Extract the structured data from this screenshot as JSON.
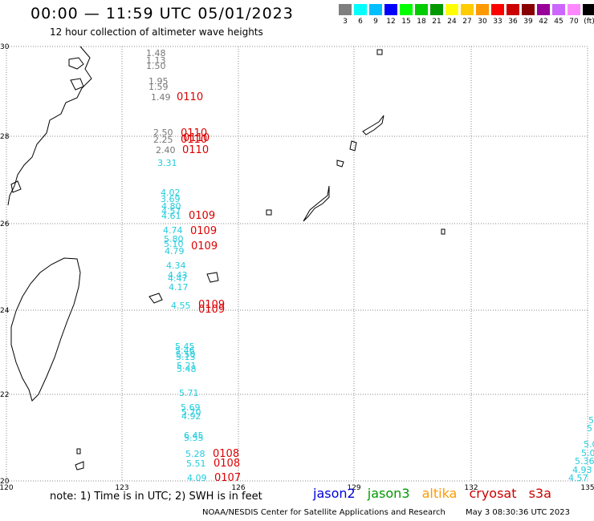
{
  "title": "00:00 — 11:59 UTC 05/01/2023",
  "subtitle": "12 hour collection of altimeter wave heights",
  "scale": {
    "labels": [
      "3",
      "6",
      "9",
      "12",
      "15",
      "18",
      "21",
      "24",
      "27",
      "30",
      "33",
      "36",
      "39",
      "42",
      "45",
      "70",
      "(ft)"
    ],
    "colors": [
      "#7f7f7f",
      "#00ffff",
      "#00bfff",
      "#0000ff",
      "#00ff00",
      "#00cc00",
      "#009900",
      "#ffff00",
      "#ffcc00",
      "#ff9900",
      "#ff0000",
      "#cc0000",
      "#880000",
      "#990099",
      "#cc66ff",
      "#ff88ff",
      "#000000"
    ]
  },
  "axes": {
    "lat_labels": [
      "30",
      "28",
      "26",
      "24",
      "22",
      "20"
    ],
    "lon_labels": [
      "120",
      "123",
      "126",
      "129",
      "132",
      "135"
    ]
  },
  "colors": {
    "grey": "#777777",
    "cyan": "#22ccdd",
    "red": "#dd0000",
    "grid": "#888888"
  },
  "observations": {
    "grey": [
      "1.48",
      "1.13",
      "1.50",
      "1.95",
      "1.59",
      "1.49",
      "2.50",
      "2.25",
      "2.40"
    ],
    "cyan": [
      "3.31",
      "4.02",
      "3.69",
      "4.80",
      "4.57",
      "4.61",
      "4.74",
      "5.80",
      "5.10",
      "4.79",
      "4.34",
      "4.43",
      "4.47",
      "4.17",
      "4.55",
      "5.45",
      "5.46",
      "5.50",
      "5.13",
      "5.21",
      "5.48",
      "5.71",
      "5.69",
      "5.70",
      "4.92",
      "6.45",
      "5.55",
      "5.28",
      "5.51",
      "4.09"
    ],
    "red": [
      "0110",
      "0110",
      "0110",
      "0110",
      "0110",
      "0109",
      "0109",
      "0109",
      "0109",
      "0109",
      "0108",
      "0108",
      "0107"
    ],
    "edge": [
      "5",
      "5",
      "5.0",
      "5.0",
      "5.36",
      "4.93",
      "4.57"
    ]
  },
  "note": "note: 1) Time is in UTC; 2) SWH is in feet",
  "missions": [
    {
      "name": "jason2",
      "color": "#0000dd"
    },
    {
      "name": "jason3",
      "color": "#009900"
    },
    {
      "name": "altika",
      "color": "#ff9900"
    },
    {
      "name": "cryosat",
      "color": "#cc0000"
    },
    {
      "name": "s3a",
      "color": "#cc0000"
    }
  ],
  "footer": {
    "credit": "NOAA/NESDIS Center for Satellite Applications and Research",
    "stamp": "May  3 08:30:36 UTC 2023"
  }
}
